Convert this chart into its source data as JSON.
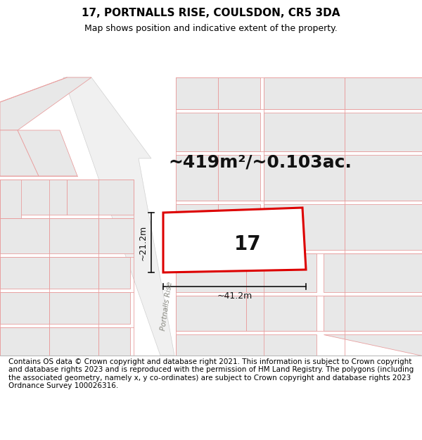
{
  "title_line1": "17, PORTNALLS RISE, COULSDON, CR5 3DA",
  "title_line2": "Map shows position and indicative extent of the property.",
  "footer_text": "Contains OS data © Crown copyright and database right 2021. This information is subject to Crown copyright and database rights 2023 and is reproduced with the permission of HM Land Registry. The polygons (including the associated geometry, namely x, y co-ordinates) are subject to Crown copyright and database rights 2023 Ordnance Survey 100026316.",
  "area_text": "~419m²/~0.103ac.",
  "plot_number": "17",
  "width_label": "~41.2m",
  "height_label": "~21.2m",
  "road_label_left": "Portnalls Rise",
  "road_label_right": "Portnalls Rise",
  "title_fontsize": 11,
  "subtitle_fontsize": 9,
  "footer_fontsize": 7.5,
  "area_fontsize": 18,
  "plot_num_fontsize": 20,
  "measure_fontsize": 9,
  "map_bg": "#ffffff",
  "building_fill": "#e8e8e8",
  "building_edge": "#e8a0a0",
  "road_fill": "#f5f5f5",
  "pink": "#e8a0a0",
  "gray_line": "#c8c8c8",
  "plot_edge": "#dd0000",
  "plot_fill": "#ffffff"
}
